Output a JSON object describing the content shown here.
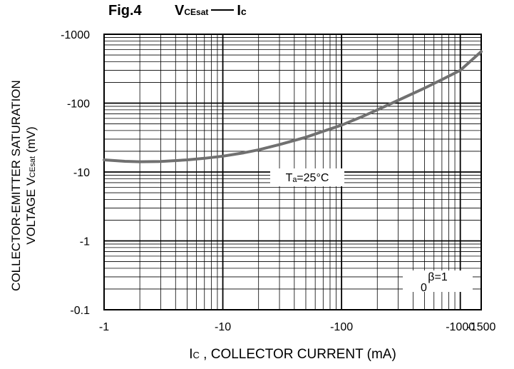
{
  "figure": {
    "number": "Fig.4",
    "title_main": "V",
    "title_sub": "CEsat",
    "title_rhs_main": "I",
    "title_rhs_sub": "c"
  },
  "axes": {
    "ylabel_line1": "COLLECTOR-EMITTER SATURATION",
    "ylabel_line2_pre": "VOLTAGE V",
    "ylabel_line2_sub": "CEsat",
    "ylabel_line2_post": " (mV)",
    "xlabel_pre": "I",
    "xlabel_sub": "C",
    "xlabel_post": " , COLLECTOR CURRENT (mA)"
  },
  "annotations": {
    "temperature": "Tₐ=25°C",
    "beta": "β=1",
    "beta_sub": "0"
  },
  "chart_data": {
    "type": "line",
    "title": "Fig.4 VCEsat —— Ic",
    "xlabel": "Ic , COLLECTOR CURRENT (mA)",
    "ylabel": "COLLECTOR-EMITTER SATURATION VOLTAGE VCEsat (mV)",
    "x_scale": "log",
    "y_scale": "log",
    "xlim": [
      -1,
      -1500
    ],
    "ylim": [
      -0.1,
      -1000
    ],
    "x_ticks": [
      "-1",
      "-10",
      "-100",
      "-1000",
      "-1500"
    ],
    "y_ticks": [
      "-1000",
      "-100",
      "-10",
      "-1",
      "-0.1"
    ],
    "grid": true,
    "color": "#707070",
    "series": [
      {
        "x": [
          -1,
          -1.5,
          -2,
          -3,
          -5,
          -7,
          -10,
          -15,
          -20,
          -30,
          -50,
          -70,
          -100,
          -150,
          -200,
          -300,
          -500,
          -700,
          -1000,
          -1500
        ],
        "y": [
          -15,
          -14.3,
          -14.1,
          -14.2,
          -15,
          -15.8,
          -17,
          -19,
          -21,
          -25,
          -32,
          -39,
          -48,
          -64,
          -80,
          -110,
          -165,
          -220,
          -300,
          -560
        ]
      }
    ]
  }
}
